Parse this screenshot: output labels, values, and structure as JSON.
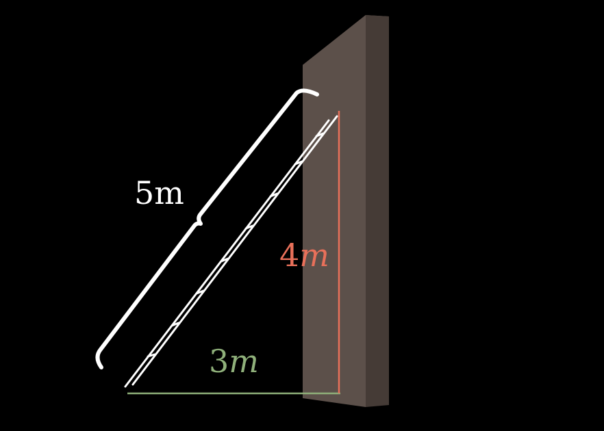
{
  "labels": {
    "hypotenuse": "5m",
    "height_value": "4",
    "height_unit": "m",
    "base_value": "3",
    "base_unit": "m"
  },
  "colors": {
    "background": "#000000",
    "wall_front": "#5c504a",
    "wall_side": "#453b36",
    "wall_top": "#6a5d56",
    "ladder": "#ffffff",
    "brace": "#ffffff",
    "height_line": "#e8705a",
    "base_line": "#8fb07a",
    "hypotenuse_label": "#ffffff",
    "height_label": "#e8705a",
    "base_label": "#8fb07a"
  },
  "icons": {
    "ladder": "ladder-icon",
    "brace": "curly-brace-icon"
  }
}
